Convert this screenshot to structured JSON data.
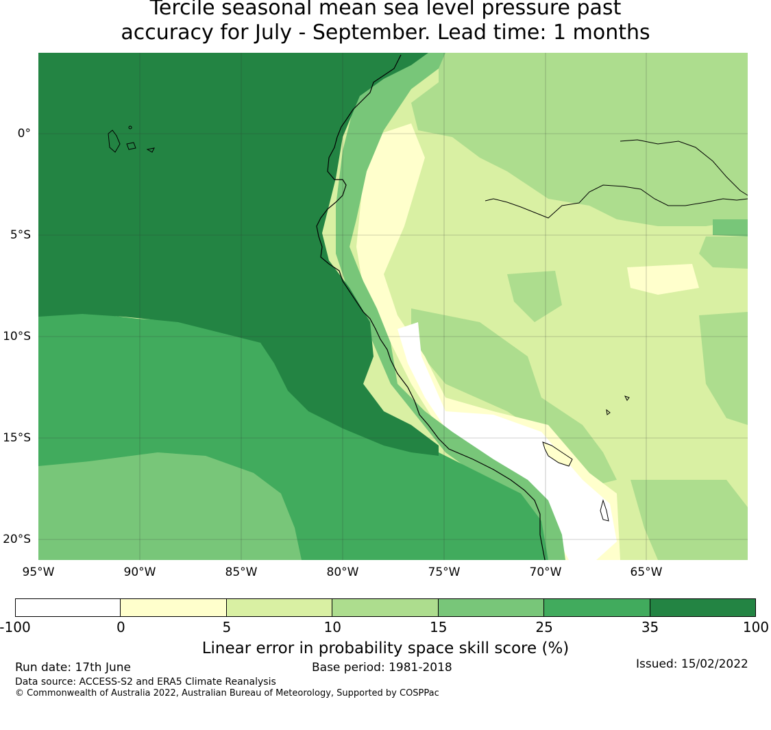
{
  "title": {
    "line1": "Tercile seasonal mean sea level pressure past",
    "line2": "accuracy for July - September. Lead time: 1 months"
  },
  "map": {
    "lon_labels": [
      "95°W",
      "90°W",
      "85°W",
      "80°W",
      "75°W",
      "70°W",
      "65°W"
    ],
    "lat_labels": [
      "0°",
      "5°S",
      "10°S",
      "15°S",
      "20°S"
    ]
  },
  "colorbar": {
    "ticks": [
      "-100",
      "0",
      "5",
      "10",
      "15",
      "25",
      "35",
      "100"
    ],
    "colors": [
      "#ffffff",
      "#ffffcc",
      "#d9f0a3",
      "#addd8e",
      "#78c679",
      "#41ab5d",
      "#238443"
    ],
    "label": "Linear error in probability space skill score (%)"
  },
  "footer": {
    "run_date": "Run date: 17th June",
    "base_period": "Base period: 1981-2018",
    "issued": "Issued: 15/02/2022",
    "data_source": "Data source: ACCESS-S2 and ERA5 Climate Reanalysis",
    "copyright": "© Commonwealth of Australia 2022, Australian Bureau of Meteorology, Supported by COSPPac"
  }
}
